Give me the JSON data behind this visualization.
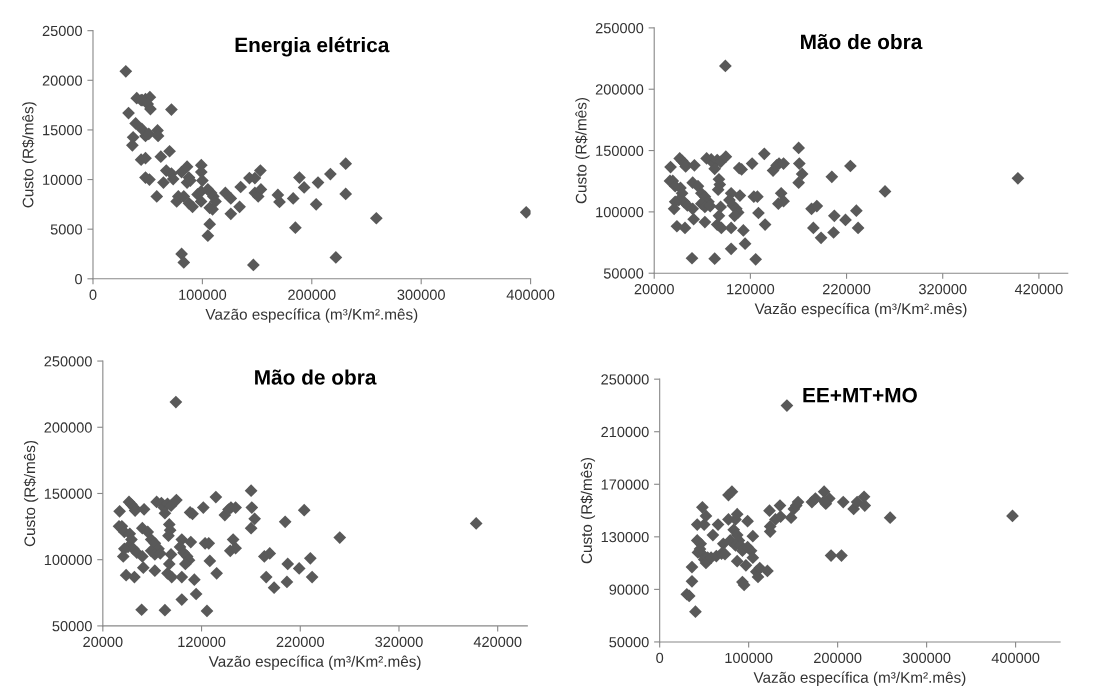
{
  "chart_data": [
    {
      "type": "scatter",
      "title": "Energia elétrica",
      "xlabel": "Vazão específica (m³/Km².mês)",
      "ylabel": "Custo (R$/mês)",
      "xlim": [
        0,
        400000
      ],
      "xticks": [
        0,
        100000,
        200000,
        300000,
        400000
      ],
      "ylim": [
        0,
        25000
      ],
      "yticks": [
        0,
        5000,
        10000,
        15000,
        20000,
        25000
      ],
      "marker": "diamond",
      "grid": false,
      "series": [
        {
          "color": "#595959",
          "x": [
            30000,
            32500,
            40000,
            44000,
            48000,
            52000,
            45000,
            50000,
            52500,
            39000,
            44600,
            48000,
            51000,
            36700,
            36000,
            44000,
            48000,
            59000,
            59500,
            48000,
            51600,
            62000,
            70000,
            71700,
            58300,
            64400,
            67000,
            71700,
            73300,
            76500,
            78000,
            81000,
            86000,
            87700,
            86000,
            89000,
            83000,
            87700,
            91000,
            95600,
            98800,
            99000,
            99000,
            100000,
            98800,
            105000,
            108000,
            110000,
            106700,
            109300,
            112000,
            106700,
            105000,
            81000,
            83000,
            121000,
            126000,
            126000,
            134000,
            135000,
            143000,
            148000,
            153000,
            148000,
            151000,
            153500,
            146600,
            169000,
            170500,
            183000,
            185000,
            188700,
            193000,
            204000,
            205700,
            217000,
            231000,
            231000,
            222000,
            259000,
            396000
          ],
          "values": [
            20900,
            16700,
            18200,
            18000,
            18100,
            18300,
            18000,
            17600,
            17100,
            15650,
            15100,
            14400,
            14600,
            14250,
            13450,
            12000,
            12150,
            14950,
            14400,
            10200,
            10000,
            12300,
            12850,
            17050,
            8300,
            9700,
            10900,
            10600,
            10050,
            7800,
            8300,
            10750,
            11300,
            10200,
            9700,
            9900,
            8300,
            7600,
            7250,
            8500,
            8800,
            11450,
            10750,
            9900,
            7800,
            9000,
            8650,
            8300,
            7150,
            7000,
            7800,
            5500,
            4350,
            2500,
            1650,
            8650,
            8100,
            6550,
            7250,
            9250,
            10150,
            10150,
            10900,
            8650,
            8300,
            9000,
            1400,
            8450,
            7750,
            8100,
            5150,
            10200,
            9200,
            7500,
            9700,
            10550,
            11600,
            8550,
            2150,
            6100,
            6700
          ]
        }
      ]
    },
    {
      "type": "scatter",
      "title": "Mão de obra",
      "xlabel": "Vazão específica (m³/Km².mês)",
      "ylabel": "Custo (R$/mês)",
      "xlim": [
        20000,
        450000
      ],
      "xticks": [
        20000,
        120000,
        220000,
        320000,
        420000
      ],
      "ylim": [
        50000,
        250000
      ],
      "yticks": [
        50000,
        100000,
        150000,
        200000,
        250000
      ],
      "marker": "diamond",
      "grid": false,
      "series": [
        {
          "color": "#595959",
          "x": [
            37000,
            36400,
            39300,
            41800,
            46500,
            49000,
            51600,
            52700,
            47300,
            49000,
            45500,
            50900,
            54500,
            41800,
            40700,
            43600,
            52000,
            61800,
            60000,
            65500,
            69000,
            72700,
            76400,
            69000,
            72700,
            78200,
            60000,
            61000,
            72700,
            59300,
            82900,
            74500,
            79300,
            81800,
            85500,
            89100,
            94500,
            82900,
            87300,
            88200,
            86500,
            89100,
            87300,
            85500,
            89800,
            100000,
            98200,
            101800,
            105400,
            107300,
            103600,
            100000,
            100000,
            108400,
            110900,
            109100,
            112700,
            114500,
            121800,
            123600,
            127300,
            128400,
            125500,
            134500,
            135300,
            143600,
            147300,
            149800,
            154500,
            149100,
            152000,
            154500,
            170200,
            170900,
            170200,
            173800,
            183600,
            189100,
            185500,
            193500,
            204700,
            207300,
            206500,
            218900,
            224000,
            230200,
            232000,
            260000,
            398200,
            94000
          ],
          "values": [
            136500,
            125200,
            125200,
            121000,
            143600,
            141600,
            139400,
            137100,
            119500,
            115200,
            109600,
            108200,
            105300,
            108200,
            102500,
            88300,
            86900,
            138000,
            123800,
            121000,
            115200,
            112400,
            108200,
            106700,
            104000,
            104700,
            102500,
            94000,
            91700,
            62200,
            61900,
            143600,
            142800,
            139400,
            142200,
            140800,
            145000,
            135100,
            126600,
            122300,
            118100,
            104000,
            96800,
            89700,
            86900,
            115200,
            109600,
            105300,
            102500,
            99600,
            96800,
            86900,
            69900,
            135700,
            134600,
            113300,
            84900,
            74100,
            139400,
            112400,
            112400,
            99100,
            61300,
            147300,
            89700,
            133700,
            137900,
            139400,
            139400,
            106700,
            115200,
            108700,
            152100,
            139400,
            123800,
            130900,
            102500,
            104700,
            86900,
            78900,
            128600,
            96800,
            83200,
            93400,
            137400,
            101000,
            86900,
            116700,
            127400,
            219000
          ]
        }
      ]
    },
    {
      "type": "scatter",
      "title": "Mão de obra",
      "xlabel": "Vazão específica (m³/Km².mês)",
      "ylabel": "Custo (R$/mês)",
      "xlim": [
        20000,
        450000
      ],
      "xticks": [
        20000,
        120000,
        220000,
        320000,
        420000
      ],
      "ylim": [
        50000,
        250000
      ],
      "yticks": [
        50000,
        100000,
        150000,
        200000,
        250000
      ],
      "marker": "diamond",
      "grid": false,
      "series": [
        {
          "color": "#595959",
          "x": [
            37000,
            36400,
            39300,
            41800,
            46500,
            49000,
            51600,
            52700,
            47300,
            49000,
            45500,
            50900,
            54500,
            41800,
            40700,
            43600,
            52000,
            61800,
            60000,
            65500,
            69000,
            72700,
            76400,
            69000,
            72700,
            78200,
            60000,
            61000,
            72700,
            59300,
            82900,
            74500,
            79300,
            81800,
            85500,
            89100,
            94500,
            82900,
            87300,
            88200,
            86500,
            89100,
            87300,
            85500,
            89800,
            100000,
            98200,
            101800,
            105400,
            107300,
            103600,
            100000,
            100000,
            108400,
            110900,
            109100,
            112700,
            114500,
            121800,
            123600,
            127300,
            128400,
            125500,
            134500,
            135300,
            143600,
            147300,
            149800,
            154500,
            149100,
            152000,
            154500,
            170200,
            170900,
            170200,
            173800,
            183600,
            189100,
            185500,
            193500,
            204700,
            207300,
            206500,
            218900,
            224000,
            230200,
            232000,
            260000,
            398200,
            94000
          ],
          "values": [
            136500,
            125200,
            125200,
            121000,
            143600,
            141600,
            139400,
            137100,
            119500,
            115200,
            109600,
            108200,
            105300,
            108200,
            102500,
            88300,
            86900,
            138000,
            123800,
            121000,
            115200,
            112400,
            108200,
            106700,
            104000,
            104700,
            102500,
            94000,
            91700,
            62200,
            61900,
            143600,
            142800,
            139400,
            142200,
            140800,
            145000,
            135100,
            126600,
            122300,
            118100,
            104000,
            96800,
            89700,
            86900,
            115200,
            109600,
            105300,
            102500,
            99600,
            96800,
            86900,
            69900,
            135700,
            134600,
            113300,
            84900,
            74100,
            139400,
            112400,
            112400,
            99100,
            61300,
            147300,
            89700,
            133700,
            137900,
            139400,
            139400,
            106700,
            115200,
            108700,
            152100,
            139400,
            123800,
            130900,
            102500,
            104700,
            86900,
            78900,
            128600,
            96800,
            83200,
            93400,
            137400,
            101000,
            86900,
            116700,
            127400,
            219000
          ]
        }
      ]
    },
    {
      "type": "scatter",
      "title": "EE+MT+MO",
      "xlabel": "Vazão específica (m³/Km².mês)",
      "ylabel": "Custo (R$/mês)",
      "xlim": [
        0,
        450000
      ],
      "xticks": [
        0,
        100000,
        200000,
        300000,
        400000
      ],
      "ylim": [
        50000,
        250000
      ],
      "yticks": [
        50000,
        90000,
        130000,
        170000,
        210000,
        250000
      ],
      "marker": "diamond",
      "grid": false,
      "series": [
        {
          "color": "#595959",
          "x": [
            30500,
            33200,
            36300,
            36300,
            40200,
            42200,
            46100,
            45300,
            48000,
            43000,
            50000,
            52000,
            53900,
            57800,
            42200,
            50000,
            48000,
            52000,
            59800,
            63700,
            69500,
            65600,
            71500,
            73400,
            77300,
            85200,
            79300,
            77300,
            81200,
            87100,
            83200,
            87100,
            89000,
            85200,
            91000,
            93000,
            87100,
            93000,
            94900,
            98800,
            104700,
            98800,
            102700,
            96900,
            104700,
            108600,
            110500,
            112500,
            121100,
            123400,
            124200,
            124200,
            130100,
            135200,
            135900,
            143000,
            147700,
            150800,
            153500,
            155500,
            171100,
            175000,
            184800,
            186700,
            190600,
            184800,
            192600,
            204300,
            206300,
            218000,
            221900,
            229700,
            230500,
            259000,
            396500
          ],
          "values": [
            86300,
            85000,
            96100,
            107000,
            73000,
            127300,
            124700,
            120700,
            116800,
            118100,
            112800,
            110100,
            114100,
            114100,
            139300,
            139300,
            152500,
            145900,
            131300,
            115400,
            117300,
            139300,
            124700,
            116800,
            143200,
            143200,
            127300,
            161800,
            164400,
            147200,
            135300,
            131300,
            127300,
            123400,
            123400,
            119400,
            111500,
            95600,
            93400,
            141900,
            130500,
            122100,
            119400,
            108300,
            114100,
            103500,
            99500,
            106200,
            104000,
            149900,
            137900,
            134000,
            143200,
            153800,
            145400,
            229900,
            144600,
            151200,
            153800,
            156500,
            156500,
            159100,
            164400,
            155200,
            159100,
            157000,
            115700,
            115700,
            156500,
            151200,
            156500,
            160500,
            153800,
            144600,
            145900
          ]
        }
      ]
    }
  ]
}
